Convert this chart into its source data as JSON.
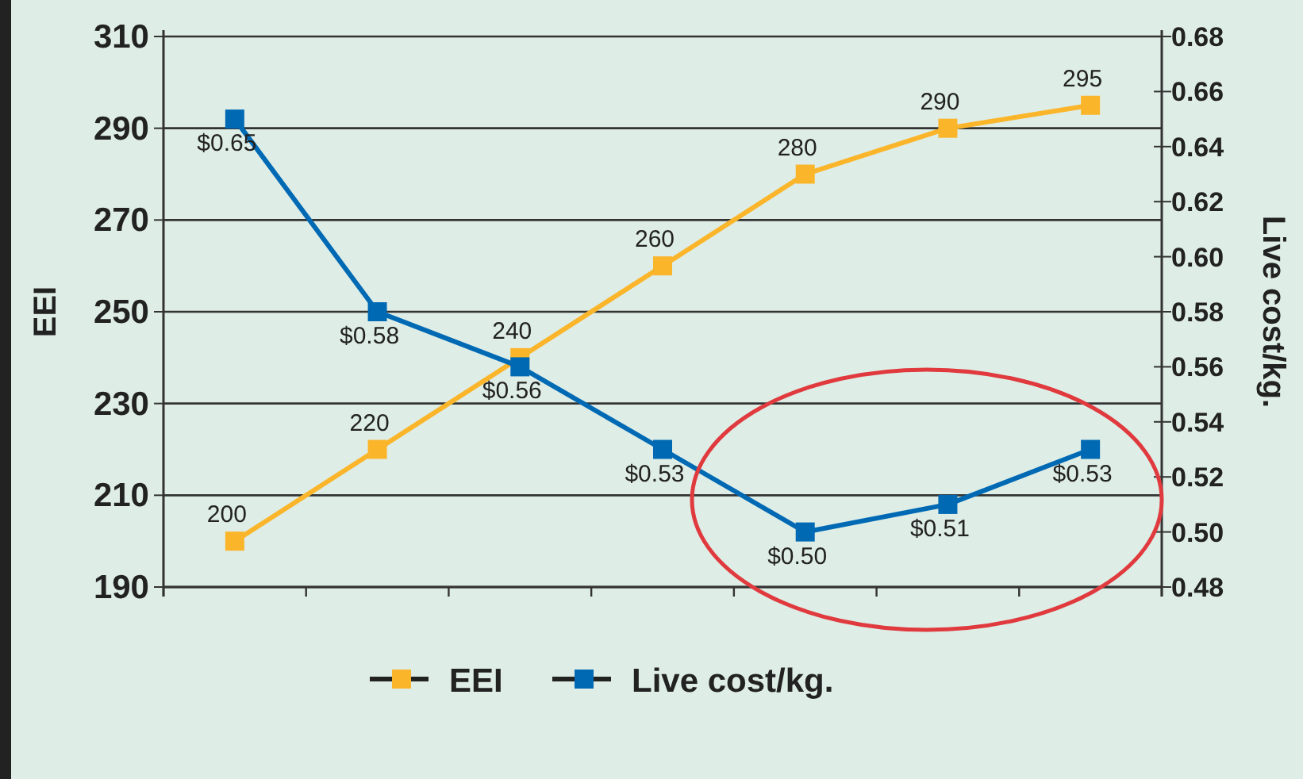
{
  "chart_data": {
    "type": "line",
    "ylabel": "EEI",
    "y2label": "Live cost/kg.",
    "categories": [
      null,
      null,
      null,
      null,
      null,
      null,
      null
    ],
    "series": [
      {
        "name": "EEI",
        "color": "#fbb52a",
        "values": [
          200,
          220,
          240,
          260,
          280,
          290,
          295
        ],
        "value_labels": [
          "200",
          "220",
          "240",
          "260",
          "280",
          "290",
          "295"
        ]
      },
      {
        "name": "Live cost/kg.",
        "color": "#0069b4",
        "axis": "y2",
        "values": [
          0.65,
          0.58,
          0.56,
          0.53,
          0.5,
          0.51,
          0.53
        ],
        "value_labels": [
          "$0.65",
          "$0.58",
          "$0.56",
          "$0.53",
          "$0.50",
          "$0.51",
          "$0.53"
        ]
      }
    ],
    "ylim": [
      190,
      310
    ],
    "yticks": [
      190,
      210,
      230,
      250,
      270,
      290,
      310
    ],
    "y2lim": [
      0.48,
      0.68
    ],
    "y2ticks": [
      {
        "value": 0.48,
        "label": "0.48"
      },
      {
        "value": 0.5,
        "label": "0.50"
      },
      {
        "value": 0.52,
        "label": "0.52"
      },
      {
        "value": 0.54,
        "label": "0.54"
      },
      {
        "value": 0.56,
        "label": "0.56"
      },
      {
        "value": 0.58,
        "label": "0.58"
      },
      {
        "value": 0.6,
        "label": "0.60"
      },
      {
        "value": 0.62,
        "label": "0.62"
      },
      {
        "value": 0.64,
        "label": "0.64"
      },
      {
        "value": 0.66,
        "label": "0.66"
      },
      {
        "value": 0.68,
        "label": "0.68"
      }
    ],
    "grid": "y",
    "legend": "bottom",
    "marker": "square",
    "line_style": "solid"
  }
}
